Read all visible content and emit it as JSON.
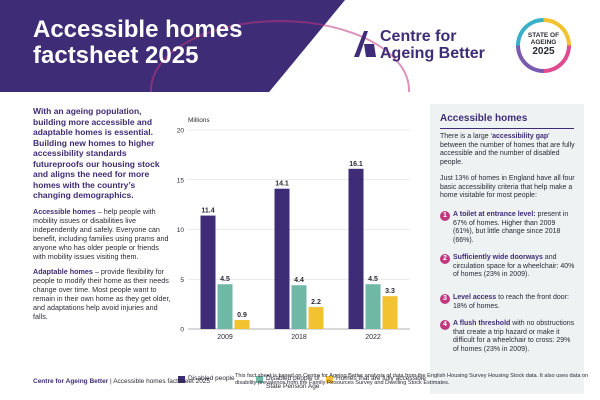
{
  "header": {
    "title_line1": "Accessible homes",
    "title_line2": "factsheet 2025",
    "logo_line1": "Centre for",
    "logo_line2": "Ageing Better",
    "badge_line1": "STATE OF",
    "badge_line2": "AGEING",
    "badge_line3": "2025"
  },
  "left": {
    "intro": "With an ageing population, building more accessible and adaptable homes is essential. Building new homes to higher accessibility standards futureproofs our housing stock and aligns the need for more homes with the country’s changing demographics.",
    "p1_bold": "Accessible homes",
    "p1_rest": " – help people with mobility issues or disabilities live independently and safely. Everyone can benefit, including families using prams and anyone who has older people or friends with mobility issues visiting them.",
    "p2_bold": "Adaptable homes",
    "p2_rest": " – provide flexibility for people to modify their home as their needs change over time. Most people want to remain in their own home as they get older, and adaptations help avoid injuries and falls."
  },
  "chart_data": {
    "type": "bar",
    "ylabel": "Millions",
    "ylim": [
      0,
      20
    ],
    "yticks": [
      0,
      5,
      10,
      15,
      20
    ],
    "categories": [
      "2009",
      "2018",
      "2022"
    ],
    "series": [
      {
        "name": "Disabled people",
        "values": [
          11.4,
          14.1,
          16.1
        ],
        "labels": [
          "11.4",
          "14.1",
          "16.1"
        ],
        "color": "#3f2c76"
      },
      {
        "name": "Disabled people of State Pension Age",
        "values": [
          4.5,
          4.4,
          4.5
        ],
        "labels": [
          "4.5",
          "4.4",
          "4.5"
        ],
        "color": "#6fb8a6"
      },
      {
        "name": "Homes that are fully accessible",
        "values": [
          0.9,
          2.2,
          3.3
        ],
        "labels": [
          "0.9",
          "2.2",
          "3.3"
        ],
        "color": "#f2c230"
      }
    ],
    "legend_legend_name2_line1": "Disabled people of",
    "legend_name2_line2": "State Pension Age",
    "grid": true,
    "legend": "bottom"
  },
  "right": {
    "title": "Accessible homes",
    "p1_a": "There is a large ‘",
    "p1_bold": "accessibility gap",
    "p1_b": "’ between the number of homes that are fully accessible and the number of disabled people.",
    "p2": "Just 13% of homes in England have all four basic accessibility criteria that help make a home visitable for most people:",
    "items": [
      {
        "num": "1",
        "bold": "A toilet at entrance level:",
        "rest": " present in 67% of homes. Higher than 2009 (61%), but little change since 2018 (66%)."
      },
      {
        "num": "2",
        "bold": "Sufficiently wide doorways",
        "rest": " and circulation space for a wheelchair: 40% of homes (23% in 2009)."
      },
      {
        "num": "3",
        "bold": "Level access",
        "rest": " to reach the front door: 18% of homes."
      },
      {
        "num": "4",
        "bold": "A flush threshold",
        "rest": " with no obstructions that create a trip hazard or make it difficult for a wheelchair to cross: 29% of homes (23% in 2009)."
      }
    ]
  },
  "footer": {
    "org": "Centre for Ageing Better",
    "sep": "  |  ",
    "doc": "Accessible homes factsheet 2025",
    "note": "This fact sheet is based on Centre for Ageing Better analysis of data from the English Housing Survey Housing Stock data. It also uses data on disability prevalence from the Family Resources Survey and Dwelling Stock Estimates."
  },
  "colors": {
    "brand_purple": "#3f2c76",
    "accent_pink": "#c0397f",
    "panel_bg": "#eef2f2"
  }
}
